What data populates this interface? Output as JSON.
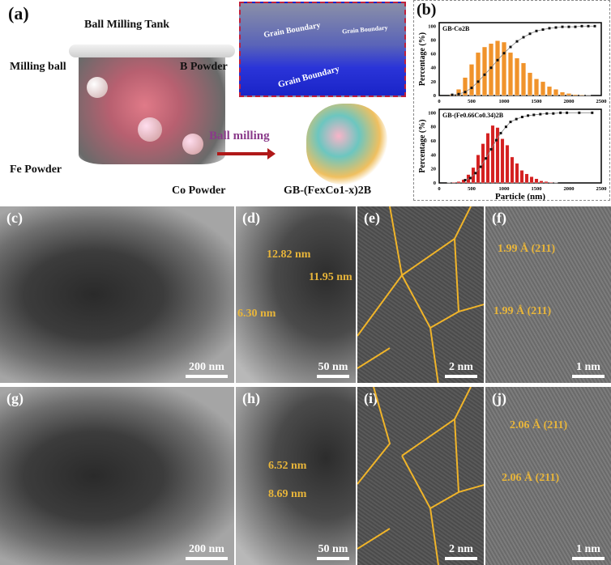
{
  "panel_a": {
    "label": "(a)",
    "title": "Ball Milling Tank",
    "milling_ball": "Milling ball",
    "b_powder": "B Powder",
    "fe_powder": "Fe Powder",
    "co_powder": "Co Powder",
    "arrow_label": "Ball milling",
    "grain_boundary_1": "Grain Boundary",
    "grain_boundary_2": "Grain Boundary",
    "grain_boundary_3": "Grain Boundary",
    "product": "GB-(FexCo1-x)2B"
  },
  "panel_b": {
    "label": "(b)"
  },
  "chart_data": [
    {
      "type": "bar+line",
      "legend": "GB-Co2B",
      "ylabel": "Percentage (%)",
      "xlabel": "",
      "xlim": [
        0,
        2500
      ],
      "ylim": [
        0,
        105
      ],
      "xticks": [
        0,
        500,
        1000,
        1500,
        2000,
        2500
      ],
      "yticks": [
        0,
        20,
        40,
        60,
        80,
        100
      ],
      "bar_color": "#f0932b",
      "x": [
        200,
        300,
        400,
        500,
        600,
        700,
        800,
        900,
        1000,
        1100,
        1200,
        1300,
        1400,
        1500,
        1600,
        1700,
        1800,
        1900,
        2000,
        2100,
        2200,
        2300
      ],
      "values": [
        2,
        9,
        26,
        45,
        62,
        70,
        75,
        79,
        77,
        62,
        54,
        47,
        33,
        24,
        20,
        13,
        9,
        5,
        3,
        1.5,
        1,
        0.5
      ],
      "cumulative_x": [
        200,
        300,
        400,
        500,
        600,
        700,
        800,
        900,
        1000,
        1100,
        1200,
        1300,
        1400,
        1500,
        1600,
        1700,
        1800,
        1900,
        2000,
        2100,
        2200,
        2300,
        2400
      ],
      "cumulative": [
        1,
        2,
        5,
        11,
        20,
        30,
        40,
        51,
        61,
        70,
        78,
        84,
        89,
        93,
        95,
        97,
        98,
        99,
        99,
        99,
        100,
        100,
        100
      ]
    },
    {
      "type": "bar+line",
      "legend": "GB-(Fe0.66Co0.34)2B",
      "ylabel": "Percentage (%)",
      "xlabel": "Particle (nm)",
      "xlim": [
        0,
        2500
      ],
      "ylim": [
        0,
        105
      ],
      "xticks": [
        0,
        500,
        1000,
        1500,
        2000,
        2500
      ],
      "yticks": [
        0,
        20,
        40,
        60,
        80,
        100
      ],
      "bar_color": "#d42020",
      "x": [
        150,
        225,
        300,
        375,
        450,
        525,
        600,
        675,
        750,
        825,
        900,
        975,
        1050,
        1125,
        1200,
        1275,
        1350,
        1425,
        1500,
        1575,
        1650,
        1725,
        1800
      ],
      "values": [
        0.5,
        1,
        2,
        5,
        12,
        22,
        40,
        56,
        71,
        82,
        79,
        63,
        54,
        37,
        28,
        18,
        13,
        9,
        6,
        3,
        2,
        1,
        0.5
      ],
      "cumulative_x": [
        400,
        480,
        560,
        640,
        720,
        800,
        880,
        950,
        1030,
        1100,
        1190,
        1280,
        1370,
        1460,
        1560,
        1660,
        1760,
        1870,
        1970,
        2160,
        2360
      ],
      "cumulative": [
        4,
        7,
        14,
        23,
        35,
        48,
        61,
        71,
        80,
        87,
        91,
        94,
        96,
        97,
        98,
        99,
        99,
        100,
        100,
        100,
        100
      ]
    }
  ],
  "panels": {
    "c": {
      "label": "(c)",
      "scale": "200 nm"
    },
    "d": {
      "label": "(d)",
      "scale": "50 nm",
      "ann1": "12.82 nm",
      "ann2": "11.95 nm",
      "ann3": "6.30 nm"
    },
    "e": {
      "label": "(e)",
      "scale": "2 nm"
    },
    "f": {
      "label": "(f)",
      "scale": "1 nm",
      "ann1": "1.99 Å (211)",
      "ann2": "1.99 Å (211)"
    },
    "g": {
      "label": "(g)",
      "scale": "200 nm"
    },
    "h": {
      "label": "(h)",
      "scale": "50 nm",
      "ann1": "6.52 nm",
      "ann2": "8.69 nm"
    },
    "i": {
      "label": "(i)",
      "scale": "2 nm"
    },
    "j": {
      "label": "(j)",
      "scale": "1 nm",
      "ann1": "2.06 Å (211)",
      "ann2": "2.06 Å (211)"
    }
  }
}
